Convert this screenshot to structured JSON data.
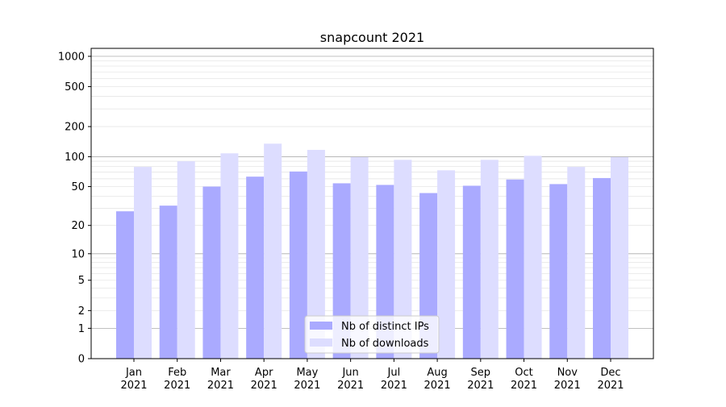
{
  "chart_data": {
    "type": "bar",
    "title": "snapcount 2021",
    "xlabel": "",
    "ylabel": "",
    "y_scale": "log(1+y)",
    "ylim": [
      0,
      1200
    ],
    "grid": true,
    "categories": [
      [
        "Jan",
        "2021"
      ],
      [
        "Feb",
        "2021"
      ],
      [
        "Mar",
        "2021"
      ],
      [
        "Apr",
        "2021"
      ],
      [
        "May",
        "2021"
      ],
      [
        "Jun",
        "2021"
      ],
      [
        "Jul",
        "2021"
      ],
      [
        "Aug",
        "2021"
      ],
      [
        "Sep",
        "2021"
      ],
      [
        "Oct",
        "2021"
      ],
      [
        "Nov",
        "2021"
      ],
      [
        "Dec",
        "2021"
      ]
    ],
    "y_ticks": [
      0,
      1,
      2,
      5,
      10,
      20,
      50,
      100,
      200,
      500,
      1000
    ],
    "y_tick_labels": [
      "0",
      "1",
      "2",
      "5",
      "10",
      "20",
      "50",
      "100",
      "200",
      "500",
      "1000"
    ],
    "series": [
      {
        "name": "Nb of distinct IPs",
        "color": "#aaaaff",
        "values": [
          28,
          32,
          50,
          63,
          71,
          54,
          52,
          43,
          51,
          59,
          53,
          61
        ]
      },
      {
        "name": "Nb of downloads",
        "color": "#ddddff",
        "values": [
          79,
          90,
          108,
          135,
          117,
          99,
          93,
          73,
          93,
          102,
          79,
          99
        ]
      }
    ],
    "legend_position": "lower-center"
  }
}
